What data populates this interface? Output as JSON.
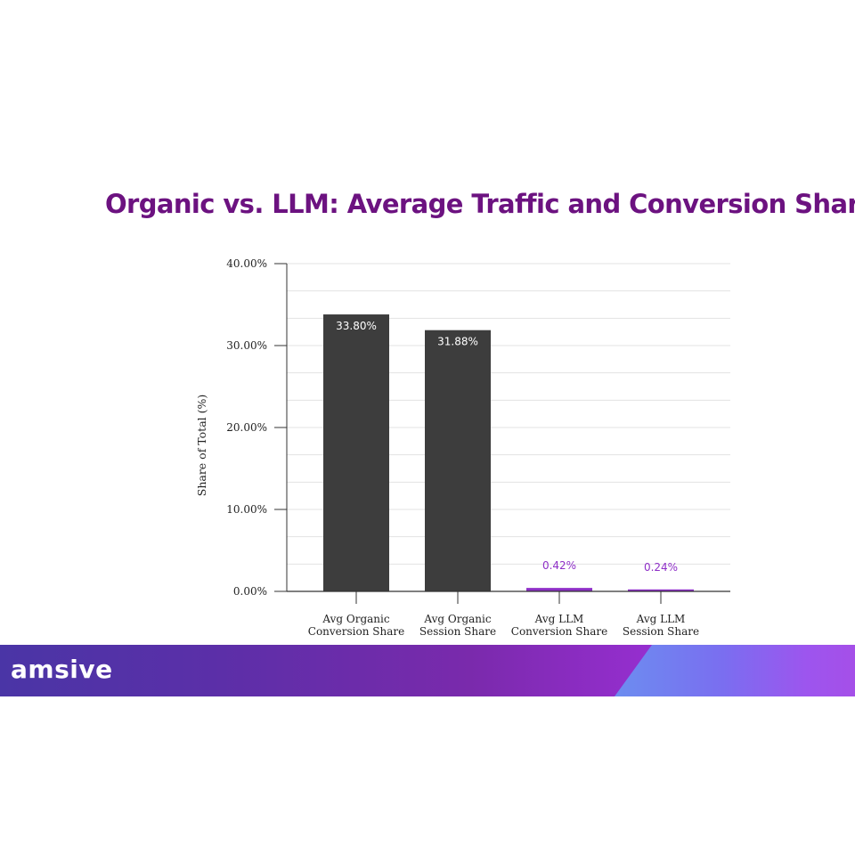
{
  "title": "Organic vs. LLM: Average Traffic and Conversion Share",
  "brand": {
    "logo_text": "amsive",
    "title_color": "#6c1280"
  },
  "chart_data": {
    "type": "bar",
    "title": "Organic vs. LLM: Average Traffic and Conversion Share",
    "xlabel": "",
    "ylabel": "Share of Total (%)",
    "ylim": [
      0,
      40
    ],
    "yticks": [
      "0.00%",
      "10.00%",
      "20.00%",
      "30.00%",
      "40.00%"
    ],
    "grid": true,
    "categories": [
      [
        "Avg Organic",
        "Conversion Share"
      ],
      [
        "Avg Organic",
        "Session Share"
      ],
      [
        "Avg LLM",
        "Conversion Share"
      ],
      [
        "Avg LLM",
        "Session Share"
      ]
    ],
    "values": [
      33.8,
      31.88,
      0.42,
      0.24
    ],
    "value_labels": [
      "33.80%",
      "31.88%",
      "0.42%",
      "0.24%"
    ],
    "colors": [
      "#3d3d3d",
      "#3d3d3d",
      "#8e2fc7",
      "#8e2fc7"
    ]
  }
}
